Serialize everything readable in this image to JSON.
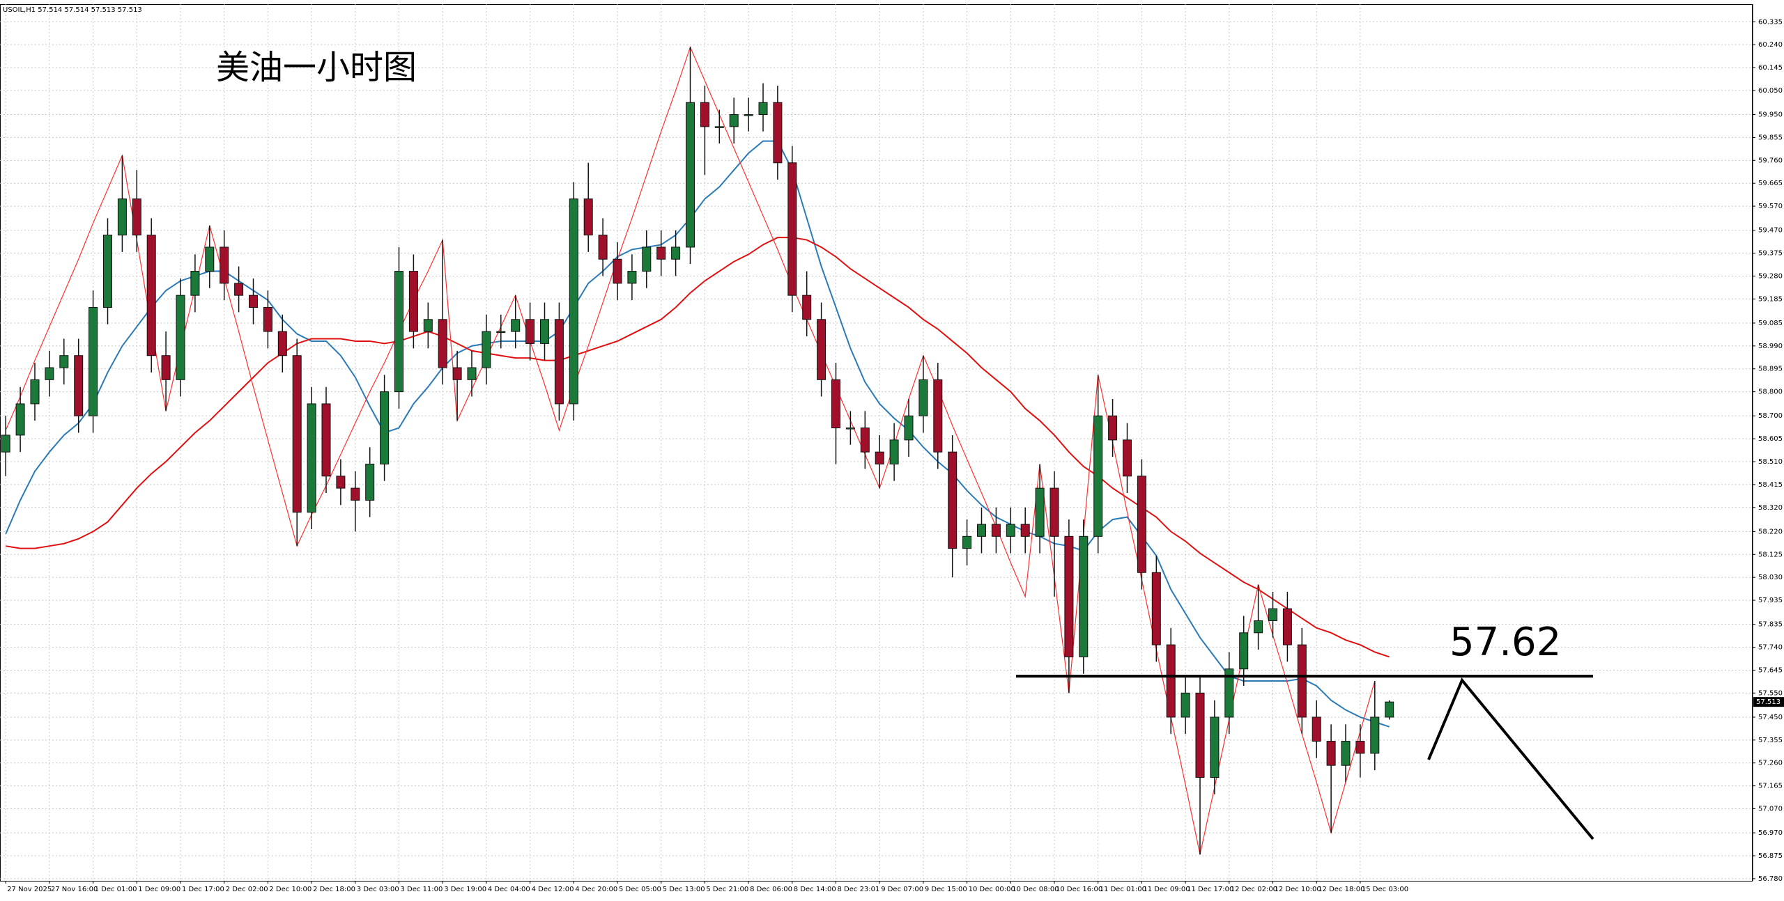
{
  "chart_data": {
    "type": "candlestick",
    "header": "USOIL,H1  57.514 57.514 57.513 57.513",
    "title": "美油一小时图",
    "categories": [
      "27 Nov 2025",
      null,
      null,
      "27 Nov 16:00",
      null,
      null,
      "1 Dec 01:00",
      null,
      null,
      "1 Dec 09:00",
      null,
      null,
      "1 Dec 17:00",
      null,
      null,
      "2 Dec 02:00",
      null,
      null,
      "2 Dec 10:00",
      null,
      null,
      "2 Dec 18:00",
      null,
      null,
      "3 Dec 03:00",
      null,
      null,
      "3 Dec 11:00",
      null,
      null,
      "3 Dec 19:00",
      null,
      null,
      "4 Dec 04:00",
      null,
      null,
      "4 Dec 12:00",
      null,
      null,
      "4 Dec 20:00",
      null,
      null,
      "5 Dec 05:00",
      null,
      null,
      "5 Dec 13:00",
      null,
      null,
      "5 Dec 21:00",
      null,
      null,
      "8 Dec 06:00",
      null,
      null,
      "8 Dec 14:00",
      null,
      null,
      "8 Dec 23:01",
      null,
      null,
      "9 Dec 07:00",
      null,
      null,
      "9 Dec 15:00",
      null,
      null,
      "10 Dec 00:00",
      null,
      null,
      "10 Dec 08:00",
      null,
      null,
      "10 Dec 16:00",
      null,
      null,
      "11 Dec 01:00",
      null,
      null,
      "11 Dec 09:00",
      null,
      null,
      "11 Dec 17:00",
      null,
      null,
      "12 Dec 02:00",
      null,
      null,
      "12 Dec 10:00",
      null,
      null,
      "12 Dec 18:00",
      null,
      null,
      "15 Dec 03:00",
      null,
      null
    ],
    "open": [
      58.55,
      58.62,
      58.75,
      58.85,
      58.9,
      58.95,
      58.7,
      59.15,
      59.45,
      59.6,
      59.45,
      58.95,
      58.85,
      59.2,
      59.3,
      59.4,
      59.25,
      59.2,
      59.15,
      59.05,
      58.95,
      58.3,
      58.75,
      58.45,
      58.4,
      58.35,
      58.5,
      58.8,
      59.3,
      59.05,
      59.1,
      58.9,
      58.85,
      58.9,
      59.05,
      59.05,
      59.1,
      59.0,
      59.1,
      58.75,
      59.6,
      59.45,
      59.35,
      59.25,
      59.3,
      59.4,
      59.35,
      59.4,
      60.0,
      59.9,
      59.9,
      59.95,
      59.95,
      60.0,
      59.75,
      59.2,
      59.1,
      58.85,
      58.65,
      58.65,
      58.55,
      58.5,
      58.6,
      58.7,
      58.85,
      58.55,
      58.15,
      58.2,
      58.25,
      58.2,
      58.25,
      58.2,
      58.4,
      58.2,
      57.7,
      58.2,
      58.7,
      58.6,
      58.45,
      58.05,
      57.75,
      57.45,
      57.55,
      57.2,
      57.45,
      57.65,
      57.8,
      57.85,
      57.9,
      57.75,
      57.45,
      57.35,
      57.25,
      57.35,
      57.3,
      57.45
    ],
    "high": [
      58.7,
      58.82,
      58.92,
      58.97,
      59.02,
      59.02,
      59.22,
      59.52,
      59.78,
      59.72,
      59.52,
      59.05,
      59.27,
      59.37,
      59.49,
      59.47,
      59.32,
      59.27,
      59.22,
      59.12,
      59.02,
      58.82,
      58.82,
      58.52,
      58.47,
      58.57,
      58.87,
      59.4,
      59.37,
      59.17,
      59.43,
      58.97,
      58.97,
      59.12,
      59.12,
      59.2,
      59.17,
      59.17,
      59.17,
      59.67,
      59.75,
      59.52,
      59.42,
      59.37,
      59.47,
      59.47,
      59.47,
      60.23,
      60.07,
      59.97,
      60.02,
      60.02,
      60.08,
      60.07,
      59.82,
      59.3,
      59.17,
      58.92,
      58.72,
      58.72,
      58.62,
      58.67,
      58.77,
      58.95,
      58.92,
      58.62,
      58.27,
      58.32,
      58.32,
      58.32,
      58.32,
      58.5,
      58.47,
      58.27,
      58.27,
      58.87,
      58.77,
      58.67,
      58.52,
      58.12,
      57.82,
      57.62,
      57.62,
      57.52,
      57.72,
      57.87,
      58.0,
      57.97,
      57.97,
      57.82,
      57.52,
      57.42,
      57.42,
      57.42,
      57.6,
      57.52
    ],
    "low": [
      58.45,
      58.55,
      58.68,
      58.78,
      58.83,
      58.63,
      58.63,
      59.08,
      59.38,
      59.38,
      58.88,
      58.72,
      58.78,
      59.13,
      59.23,
      59.18,
      59.13,
      59.08,
      58.98,
      58.88,
      58.16,
      58.23,
      58.38,
      58.33,
      58.22,
      58.28,
      58.43,
      58.73,
      58.98,
      58.98,
      58.83,
      58.68,
      58.78,
      58.83,
      58.98,
      58.98,
      58.93,
      58.93,
      58.68,
      58.68,
      59.38,
      59.28,
      59.18,
      59.18,
      59.23,
      59.28,
      59.28,
      59.33,
      59.7,
      59.83,
      59.83,
      59.88,
      59.88,
      59.68,
      59.13,
      59.03,
      58.78,
      58.5,
      58.58,
      58.48,
      58.4,
      58.43,
      58.53,
      58.63,
      58.48,
      58.03,
      58.08,
      58.13,
      58.13,
      58.13,
      58.13,
      58.13,
      57.95,
      57.55,
      57.63,
      58.13,
      58.53,
      58.38,
      57.98,
      57.68,
      57.38,
      57.38,
      56.88,
      57.13,
      57.38,
      57.58,
      57.73,
      57.78,
      57.68,
      57.38,
      57.28,
      56.97,
      57.18,
      57.2,
      57.23,
      57.44
    ],
    "close": [
      58.62,
      58.75,
      58.85,
      58.9,
      58.95,
      58.7,
      59.15,
      59.45,
      59.6,
      59.45,
      58.95,
      58.85,
      59.2,
      59.3,
      59.4,
      59.25,
      59.2,
      59.15,
      59.05,
      58.95,
      58.3,
      58.75,
      58.45,
      58.4,
      58.35,
      58.5,
      58.8,
      59.3,
      59.05,
      59.1,
      58.9,
      58.85,
      58.9,
      59.05,
      59.05,
      59.1,
      59.0,
      59.1,
      58.75,
      59.6,
      59.45,
      59.35,
      59.25,
      59.3,
      59.4,
      59.35,
      59.4,
      60.0,
      59.9,
      59.9,
      59.95,
      59.95,
      60.0,
      59.75,
      59.2,
      59.1,
      58.85,
      58.65,
      58.65,
      58.55,
      58.5,
      58.6,
      58.7,
      58.85,
      58.55,
      58.15,
      58.2,
      58.25,
      58.2,
      58.25,
      58.2,
      58.4,
      58.2,
      57.7,
      58.2,
      58.7,
      58.6,
      58.45,
      58.05,
      57.75,
      57.45,
      57.55,
      57.2,
      57.45,
      57.65,
      57.8,
      57.85,
      57.9,
      57.75,
      57.45,
      57.35,
      57.25,
      57.35,
      57.3,
      57.45,
      57.513
    ],
    "up_color": "#1b7a3a",
    "down_color": "#a0102a",
    "series": [
      {
        "color": "#2a7ab8",
        "values": [
          58.21,
          58.35,
          58.47,
          58.55,
          58.62,
          58.67,
          58.75,
          58.88,
          58.99,
          59.07,
          59.15,
          59.22,
          59.26,
          59.28,
          59.3,
          59.3,
          59.26,
          59.22,
          59.18,
          59.1,
          59.04,
          59.01,
          59.01,
          58.95,
          58.86,
          58.74,
          58.63,
          58.65,
          58.75,
          58.82,
          58.9,
          58.96,
          58.99,
          59.0,
          59.01,
          59.01,
          59.01,
          59.01,
          59.05,
          59.15,
          59.25,
          59.3,
          59.36,
          59.39,
          59.4,
          59.41,
          59.45,
          59.52,
          59.6,
          59.65,
          59.72,
          59.79,
          59.84,
          59.84,
          59.72,
          59.52,
          59.32,
          59.15,
          58.98,
          58.84,
          58.75,
          58.69,
          58.64,
          58.57,
          58.51,
          58.46,
          58.39,
          58.33,
          58.28,
          58.25,
          58.22,
          58.2,
          58.17,
          58.16,
          58.14,
          58.22,
          58.27,
          58.28,
          58.2,
          58.12,
          57.98,
          57.88,
          57.78,
          57.7,
          57.62,
          57.6,
          57.6,
          57.6,
          57.6,
          57.61,
          57.58,
          57.52,
          57.48,
          57.45,
          57.43,
          57.41
        ]
      },
      {
        "color": "#e01010",
        "values": [
          58.16,
          58.15,
          58.15,
          58.16,
          58.17,
          58.19,
          58.22,
          58.26,
          58.33,
          58.4,
          58.46,
          58.51,
          58.57,
          58.63,
          58.68,
          58.74,
          58.8,
          58.86,
          58.92,
          58.96,
          59.0,
          59.02,
          59.02,
          59.02,
          59.01,
          59.01,
          59.0,
          59.01,
          59.03,
          59.05,
          59.03,
          59.0,
          58.97,
          58.96,
          58.95,
          58.94,
          58.94,
          58.93,
          58.93,
          58.95,
          58.97,
          58.99,
          59.01,
          59.04,
          59.07,
          59.1,
          59.15,
          59.21,
          59.26,
          59.3,
          59.34,
          59.37,
          59.41,
          59.44,
          59.44,
          59.43,
          59.4,
          59.36,
          59.31,
          59.27,
          59.23,
          59.19,
          59.15,
          59.1,
          59.06,
          59.01,
          58.96,
          58.9,
          58.85,
          58.8,
          58.73,
          58.68,
          58.62,
          58.55,
          58.49,
          58.45,
          58.4,
          58.36,
          58.32,
          58.28,
          58.22,
          58.18,
          58.13,
          58.09,
          58.05,
          58.01,
          57.98,
          57.94,
          57.9,
          57.86,
          57.82,
          57.8,
          57.77,
          57.75,
          57.72,
          57.7
        ]
      },
      {
        "color": "#ff3030",
        "values": [
          58.64,
          58.78,
          58.93,
          59.07,
          59.21,
          59.35,
          59.5,
          59.64,
          59.78,
          59.43,
          59.07,
          58.72,
          58.98,
          59.23,
          59.49,
          59.27,
          59.05,
          58.82,
          58.6,
          58.38,
          58.16,
          58.29,
          58.41,
          58.54,
          58.67,
          58.8,
          58.92,
          59.05,
          59.18,
          59.3,
          59.43,
          58.68,
          58.81,
          58.94,
          59.07,
          59.2,
          59.01,
          58.83,
          58.64,
          58.82,
          58.99,
          59.17,
          59.35,
          59.52,
          59.7,
          59.88,
          60.05,
          60.23,
          60.09,
          59.95,
          59.81,
          59.67,
          59.53,
          59.39,
          59.24,
          59.1,
          58.96,
          58.82,
          58.68,
          58.54,
          58.4,
          58.58,
          58.77,
          58.95,
          58.81,
          58.66,
          58.52,
          58.38,
          58.24,
          58.09,
          57.95,
          58.5,
          58.03,
          57.55,
          58.21,
          58.87,
          58.59,
          58.3,
          58.02,
          57.73,
          57.45,
          57.17,
          56.88,
          57.16,
          57.44,
          57.72,
          58.0,
          57.79,
          57.59,
          57.38,
          57.18,
          56.97,
          57.18,
          57.39,
          57.6,
          null
        ]
      }
    ],
    "level": 57.62,
    "ylim": [
      56.771,
      60.408
    ],
    "yticks": [
      60.335,
      {
        "value": 60.24,
        "label": "60.240"
      },
      60.145,
      {
        "value": 60.05,
        "label": "60.050"
      },
      {
        "value": 59.95,
        "label": "59.950"
      },
      59.855,
      {
        "value": 59.76,
        "label": "59.760"
      },
      59.665,
      {
        "value": 59.57,
        "label": "59.570"
      },
      {
        "value": 59.47,
        "label": "59.470"
      },
      59.375,
      {
        "value": 59.28,
        "label": "59.280"
      },
      59.185,
      59.085,
      {
        "value": 58.99,
        "label": "58.990"
      },
      58.895,
      {
        "value": 58.8,
        "label": "58.800"
      },
      {
        "value": 58.7,
        "label": "58.700"
      },
      58.605,
      {
        "value": 58.51,
        "label": "58.510"
      },
      58.415,
      {
        "value": 58.32,
        "label": "58.320"
      },
      {
        "value": 58.22,
        "label": "58.220"
      },
      58.125,
      {
        "value": 58.03,
        "label": "58.030"
      },
      57.935,
      57.835,
      {
        "value": 57.74,
        "label": "57.740"
      },
      57.645,
      {
        "value": 57.55,
        "label": "57.550"
      },
      {
        "value": 57.45,
        "label": "57.450"
      },
      57.355,
      {
        "value": 57.26,
        "label": "57.260"
      },
      57.165,
      {
        "value": 57.07,
        "label": "57.070"
      },
      {
        "value": 56.97,
        "label": "56.970"
      },
      56.875,
      {
        "value": 56.78,
        "label": "56.780"
      }
    ],
    "grid": true
  }
}
